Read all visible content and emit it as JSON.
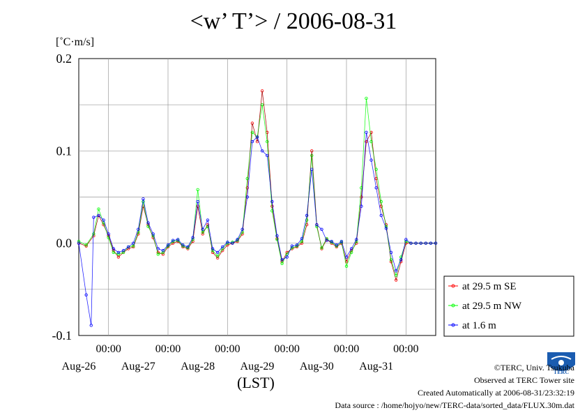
{
  "chart_data": {
    "type": "line",
    "title": "<w’ T’> / 2006-08-31",
    "ylabel": "[˚C·m/s]",
    "xlabel": "(LST)",
    "ylim": [
      -0.1,
      0.2
    ],
    "yticks": [
      -0.1,
      0.0,
      0.1,
      0.2
    ],
    "ytick_labels": [
      "-0.1",
      "0.0",
      "0.1",
      "0.2"
    ],
    "xlim": [
      "2006-08-25T12:00",
      "2006-08-31T12:00"
    ],
    "xticks": [
      "2006-08-26T00:00",
      "2006-08-27T00:00",
      "2006-08-28T00:00",
      "2006-08-29T00:00",
      "2006-08-30T00:00",
      "2006-08-31T00:00"
    ],
    "xtick_time_label": "00:00",
    "xtick_day_labels": [
      "Aug-26",
      "Aug-27",
      "Aug-28",
      "Aug-29",
      "Aug-30",
      "Aug-31"
    ],
    "grid": true,
    "legend_position": "bottom-right outside plot",
    "series": [
      {
        "name": "at 29.5 m SE",
        "color": "#ff0000",
        "x_hours": [
          0,
          3,
          6,
          8,
          10,
          12,
          14,
          16,
          18,
          20,
          22,
          24,
          26,
          28,
          30,
          32,
          34,
          36,
          38,
          40,
          42,
          44,
          46,
          48,
          50,
          52,
          54,
          56,
          58,
          60,
          62,
          64,
          66,
          68,
          70,
          72,
          74,
          76,
          78,
          80,
          82,
          84,
          86,
          88,
          90,
          92,
          94,
          96,
          98,
          100,
          102,
          104,
          106,
          108,
          110,
          112,
          114,
          116,
          118,
          120,
          122,
          124,
          126,
          128,
          130,
          132,
          134,
          136,
          138,
          140,
          142,
          144
        ],
        "values": [
          0.0,
          -0.003,
          0.008,
          0.03,
          0.02,
          0.008,
          -0.008,
          -0.015,
          -0.01,
          -0.006,
          -0.004,
          0.01,
          0.04,
          0.02,
          0.006,
          -0.01,
          -0.012,
          -0.004,
          0.0,
          0.002,
          -0.004,
          -0.006,
          0.002,
          0.04,
          0.01,
          0.02,
          -0.01,
          -0.016,
          -0.008,
          -0.002,
          0.0,
          0.002,
          0.01,
          0.06,
          0.13,
          0.11,
          0.165,
          0.12,
          0.04,
          0.005,
          -0.02,
          -0.01,
          -0.006,
          -0.004,
          0.0,
          0.02,
          0.1,
          0.02,
          -0.006,
          0.004,
          0.0,
          -0.004,
          0.0,
          -0.02,
          -0.008,
          0.0,
          0.05,
          0.11,
          0.12,
          0.07,
          0.04,
          0.02,
          -0.02,
          -0.04,
          -0.02,
          0.0,
          0.0,
          0.0,
          0.0,
          0.0,
          0.0,
          0.0
        ]
      },
      {
        "name": "at 29.5 m NW",
        "color": "#00ff00",
        "x_hours": [
          0,
          3,
          6,
          8,
          10,
          12,
          14,
          16,
          18,
          20,
          22,
          24,
          26,
          28,
          30,
          32,
          34,
          36,
          38,
          40,
          42,
          44,
          46,
          48,
          50,
          52,
          54,
          56,
          58,
          60,
          62,
          64,
          66,
          68,
          70,
          72,
          74,
          76,
          78,
          80,
          82,
          84,
          86,
          88,
          90,
          92,
          94,
          96,
          98,
          100,
          102,
          104,
          106,
          108,
          110,
          112,
          114,
          116,
          118,
          120,
          122,
          124,
          126,
          128,
          130,
          132,
          134,
          136,
          138,
          140,
          142,
          144
        ],
        "values": [
          0.002,
          -0.002,
          0.01,
          0.037,
          0.022,
          0.006,
          -0.01,
          -0.012,
          -0.01,
          -0.004,
          -0.003,
          0.012,
          0.045,
          0.018,
          0.008,
          -0.012,
          -0.01,
          -0.003,
          0.002,
          0.003,
          -0.003,
          -0.005,
          0.004,
          0.058,
          0.012,
          0.018,
          -0.008,
          -0.014,
          -0.006,
          0.0,
          0.001,
          0.003,
          0.012,
          0.07,
          0.12,
          0.115,
          0.15,
          0.11,
          0.035,
          0.004,
          -0.022,
          -0.012,
          -0.005,
          -0.003,
          0.002,
          0.025,
          0.095,
          0.018,
          -0.005,
          0.005,
          0.001,
          -0.003,
          0.001,
          -0.025,
          -0.01,
          0.002,
          0.06,
          0.157,
          0.11,
          0.08,
          0.045,
          0.018,
          -0.018,
          -0.035,
          -0.015,
          0.002,
          0.0,
          0.0,
          0.0,
          0.0,
          0.0,
          0.0
        ]
      },
      {
        "name": "at 1.6 m",
        "color": "#0000ff",
        "x_hours": [
          0,
          3,
          5,
          6,
          8,
          10,
          12,
          14,
          16,
          18,
          20,
          22,
          24,
          26,
          28,
          30,
          32,
          34,
          36,
          38,
          40,
          42,
          44,
          46,
          48,
          50,
          52,
          54,
          56,
          58,
          60,
          62,
          64,
          66,
          68,
          70,
          72,
          74,
          76,
          78,
          80,
          82,
          84,
          86,
          88,
          90,
          92,
          94,
          96,
          98,
          100,
          102,
          104,
          106,
          108,
          110,
          112,
          114,
          116,
          118,
          120,
          122,
          124,
          126,
          128,
          130,
          132,
          134,
          136,
          138,
          140,
          142,
          144
        ],
        "values": [
          0.0,
          -0.056,
          -0.089,
          0.028,
          0.03,
          0.025,
          0.01,
          -0.006,
          -0.01,
          -0.008,
          -0.004,
          0.0,
          0.015,
          0.048,
          0.022,
          0.01,
          -0.006,
          -0.008,
          -0.002,
          0.003,
          0.004,
          -0.002,
          -0.004,
          0.006,
          0.045,
          0.015,
          0.025,
          -0.006,
          -0.01,
          -0.004,
          0.001,
          0.0,
          0.004,
          0.015,
          0.05,
          0.11,
          0.115,
          0.1,
          0.095,
          0.045,
          0.008,
          -0.018,
          -0.015,
          -0.003,
          -0.002,
          0.005,
          0.03,
          0.08,
          0.02,
          0.015,
          0.003,
          0.002,
          -0.002,
          0.002,
          -0.015,
          -0.006,
          0.004,
          0.04,
          0.12,
          0.09,
          0.06,
          0.03,
          0.016,
          -0.01,
          -0.03,
          -0.018,
          0.004,
          0.0,
          0.0,
          0.0,
          0.0,
          0.0,
          0.0
        ]
      }
    ]
  },
  "lst_label": "(LST)",
  "footer": {
    "copyright": "©TERC, Univ. Tsukuba",
    "observed": "Observed at TERC Tower site",
    "created": "Created Automatically at 2006-08-31/23:32:19",
    "source": "Data source : /home/hojyo/new/TERC-data/sorted_data/FLUX.30m.dat"
  },
  "logo": {
    "text": "TERC",
    "color": "#1a5cb0"
  }
}
